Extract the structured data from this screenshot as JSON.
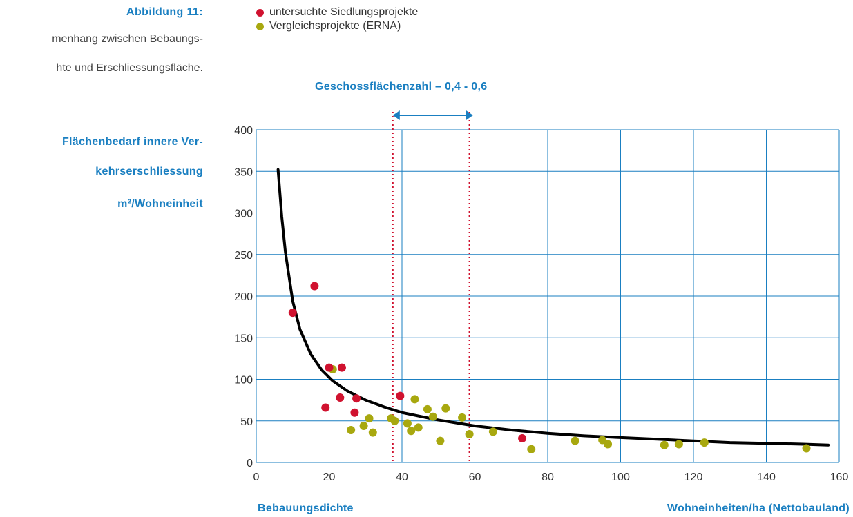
{
  "figure": {
    "label": "Abbildung 11:",
    "caption_line1": "menhang zwischen Bebaungs-",
    "caption_line2": "hte und Erschliessungsfläche."
  },
  "legend": [
    {
      "label": "untersuchte Siedlungsprojekte",
      "color": "#d0122f"
    },
    {
      "label": "Vergleichsprojekte (ERNA)",
      "color": "#a8a80f"
    }
  ],
  "y_label": {
    "line1": "Flächenbedarf innere Ver-",
    "line2": "kehrserschliessung",
    "line3": "m²/Wohneinheit"
  },
  "x_label": {
    "left": "Bebauungsdichte",
    "right": "Wohneinheiten/ha (Nettobauland)"
  },
  "gfz": {
    "title": "Geschossflächenzahl – 0,4 - 0,6",
    "x_range": [
      37.5,
      58.5
    ],
    "arrow_range": [
      37.5,
      59.5
    ]
  },
  "colors": {
    "accent": "#1a7fc1",
    "grid": "#1a7fc1",
    "curve": "#000000",
    "range_line": "#d0122f"
  },
  "chart_data": {
    "type": "scatter",
    "xlim": [
      0,
      160
    ],
    "ylim": [
      0,
      400
    ],
    "x_ticks": [
      0,
      20,
      40,
      60,
      80,
      100,
      120,
      140,
      160
    ],
    "y_ticks": [
      0,
      50,
      100,
      150,
      200,
      250,
      300,
      350,
      400
    ],
    "grid": true,
    "legend_position": "top",
    "series": [
      {
        "name": "untersuchte Siedlungsprojekte",
        "color": "#d0122f",
        "points": [
          [
            10,
            180
          ],
          [
            16,
            212
          ],
          [
            19,
            66
          ],
          [
            20,
            114
          ],
          [
            23,
            78
          ],
          [
            23.5,
            114
          ],
          [
            27,
            60
          ],
          [
            27.5,
            77
          ],
          [
            39.5,
            80
          ],
          [
            73,
            29
          ]
        ]
      },
      {
        "name": "Vergleichsprojekte (ERNA)",
        "color": "#a8a80f",
        "points": [
          [
            21,
            112
          ],
          [
            26,
            39
          ],
          [
            29.5,
            44
          ],
          [
            31,
            53
          ],
          [
            32,
            36
          ],
          [
            37,
            53
          ],
          [
            38,
            50
          ],
          [
            41.5,
            47
          ],
          [
            42.5,
            38
          ],
          [
            43.5,
            76
          ],
          [
            44.5,
            42
          ],
          [
            47,
            64
          ],
          [
            48.5,
            55
          ],
          [
            50.5,
            26
          ],
          [
            52,
            65
          ],
          [
            56.5,
            54
          ],
          [
            58.5,
            34
          ],
          [
            65,
            37
          ],
          [
            75.5,
            16
          ],
          [
            87.5,
            26
          ],
          [
            95,
            27
          ],
          [
            96.5,
            22
          ],
          [
            112,
            21
          ],
          [
            116,
            22
          ],
          [
            123,
            24
          ],
          [
            151,
            17
          ]
        ]
      }
    ],
    "trend_curve": {
      "color": "#000000",
      "points": [
        [
          6,
          352
        ],
        [
          7,
          296
        ],
        [
          8,
          253
        ],
        [
          10,
          194
        ],
        [
          12,
          160
        ],
        [
          15,
          130
        ],
        [
          18,
          111
        ],
        [
          21,
          98
        ],
        [
          25,
          86
        ],
        [
          30,
          75
        ],
        [
          35,
          67
        ],
        [
          40,
          60
        ],
        [
          50,
          51
        ],
        [
          60,
          44
        ],
        [
          70,
          39
        ],
        [
          80,
          35
        ],
        [
          90,
          32
        ],
        [
          100,
          30
        ],
        [
          110,
          28
        ],
        [
          120,
          26
        ],
        [
          130,
          24
        ],
        [
          140,
          23
        ],
        [
          150,
          22
        ],
        [
          157,
          21
        ]
      ]
    }
  }
}
